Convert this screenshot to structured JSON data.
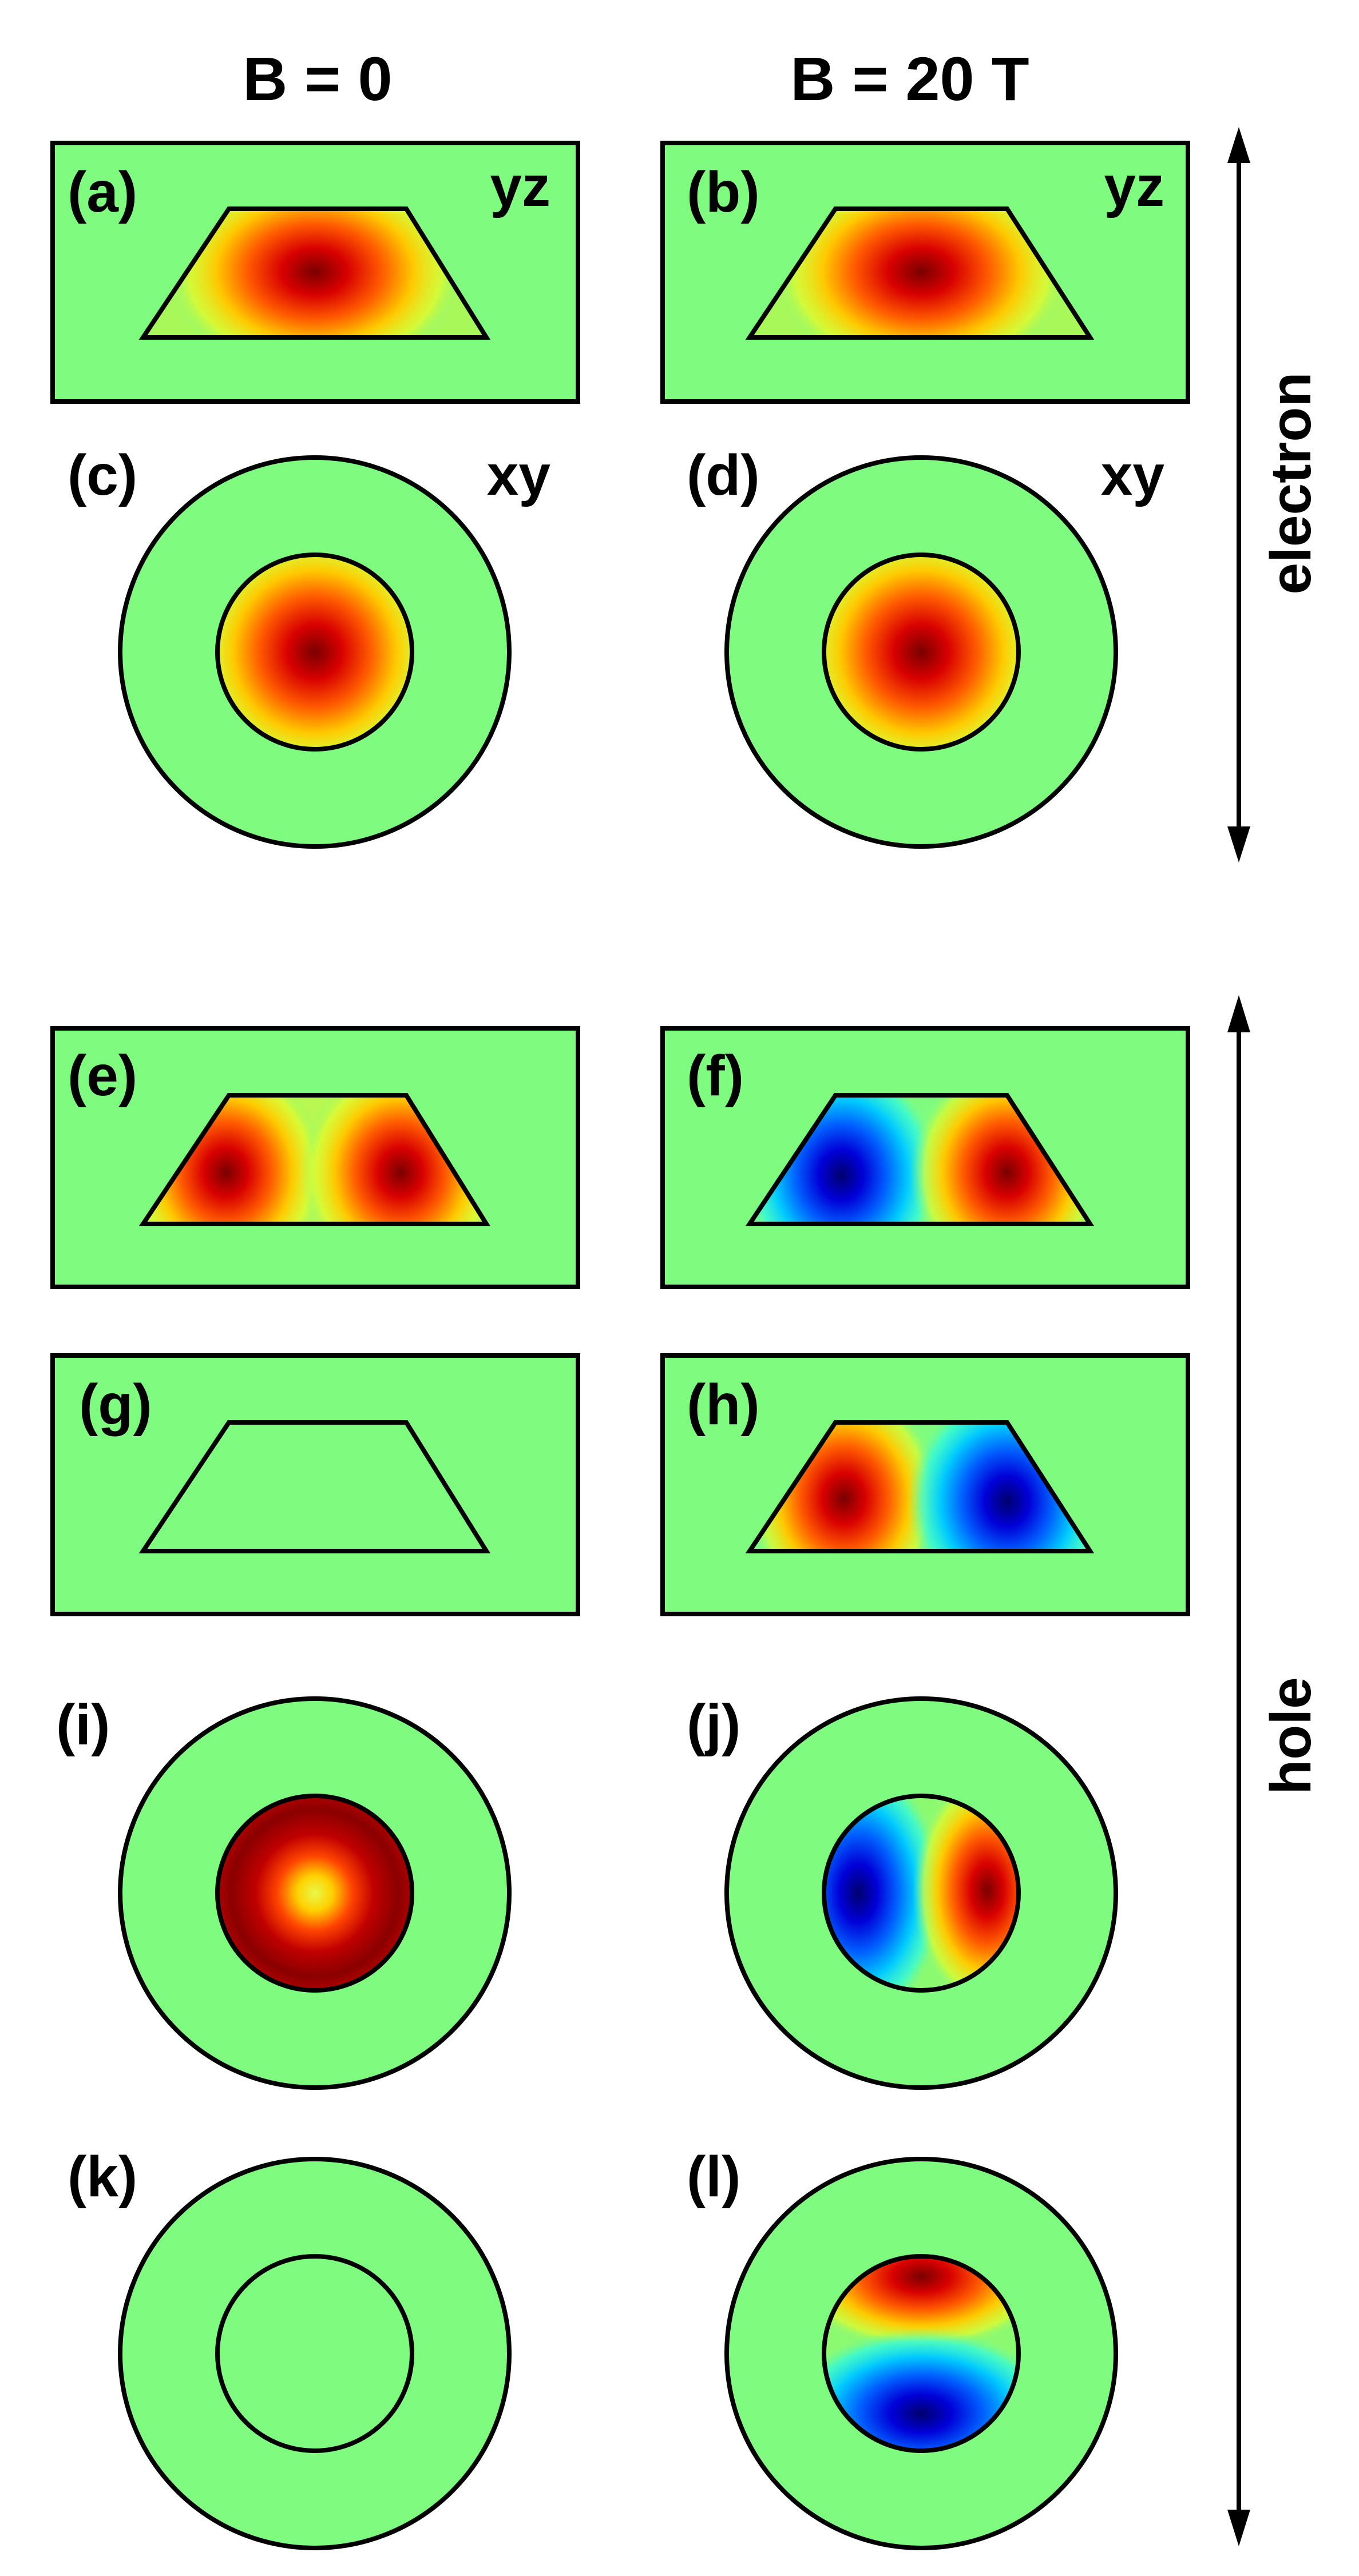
{
  "column_headers": {
    "left": "B = 0",
    "right": "B = 20 T"
  },
  "side_labels": {
    "electron": "electron",
    "hole": "hole"
  },
  "view_labels": {
    "yz": "yz",
    "xy": "xy"
  },
  "panels": {
    "a": "(a)",
    "b": "(b)",
    "c": "(c)",
    "d": "(d)",
    "e": "(e)",
    "f": "(f)",
    "g": "(g)",
    "h": "(h)",
    "i": "(i)",
    "j": "(j)",
    "k": "(k)",
    "l": "(l)"
  },
  "colors": {
    "background": "#7ffc7f",
    "outline": "#000000",
    "positive_peak": "#8b0000",
    "negative_peak": "#00008b"
  }
}
